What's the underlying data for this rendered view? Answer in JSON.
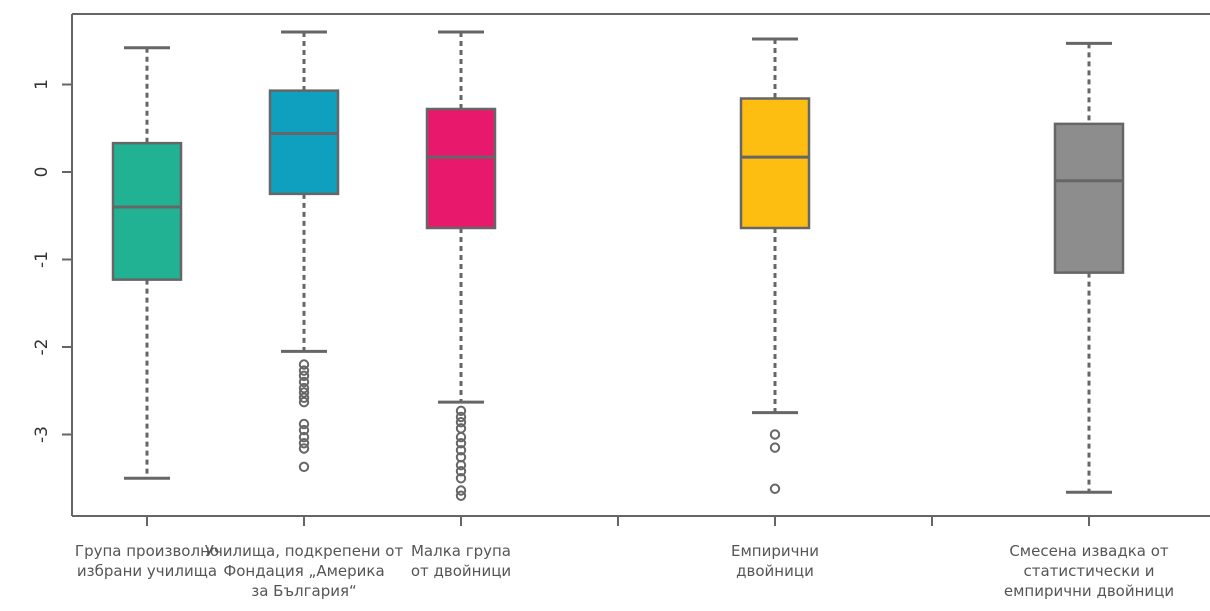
{
  "chart_data": {
    "type": "boxplot",
    "title": "",
    "xlabel": "",
    "ylabel": "",
    "ylim": [
      -3.9,
      1.8
    ],
    "yticks": [
      1,
      0,
      -1,
      -2,
      -3
    ],
    "ytick_labels": [
      "1",
      "0",
      "-1",
      "-2",
      "-3"
    ],
    "grid": false,
    "legend": "none",
    "categories": [
      "Група произволно\nизбрани училища",
      "Училища, подкрепени от\nФондация „Америка\nза България“",
      "Малка група\nот двойници",
      "",
      "Емпирични\nдвойници",
      "",
      "Смесена извадка от\nстатистически и\nемпирични двойници"
    ],
    "boxes": [
      {
        "category_index": 0,
        "whisker_low": -3.5,
        "q1": -1.23,
        "median": -0.4,
        "q3": 0.33,
        "whisker_high": 1.42,
        "outliers": [],
        "color": "#21B293"
      },
      {
        "category_index": 1,
        "whisker_low": -2.05,
        "q1": -0.25,
        "median": 0.44,
        "q3": 0.93,
        "whisker_high": 1.6,
        "outliers": [
          -2.2,
          -2.27,
          -2.33,
          -2.4,
          -2.47,
          -2.52,
          -2.58,
          -2.63,
          -2.88,
          -2.95,
          -3.03,
          -3.1,
          -3.16,
          -3.37
        ],
        "color": "#0EA0BE"
      },
      {
        "category_index": 2,
        "whisker_low": -2.63,
        "q1": -0.64,
        "median": 0.17,
        "q3": 0.72,
        "whisker_high": 1.6,
        "outliers": [
          -2.73,
          -2.8,
          -2.86,
          -2.93,
          -3.03,
          -3.1,
          -3.18,
          -3.26,
          -3.35,
          -3.42,
          -3.5,
          -3.64,
          -3.7
        ],
        "color": "#E8186C"
      },
      {
        "category_index": 4,
        "whisker_low": -2.75,
        "q1": -0.64,
        "median": 0.17,
        "q3": 0.84,
        "whisker_high": 1.52,
        "outliers": [
          -3.0,
          -3.15,
          -3.62
        ],
        "color": "#FEBD11"
      },
      {
        "category_index": 6,
        "whisker_low": -3.66,
        "q1": -1.15,
        "median": -0.1,
        "q3": 0.55,
        "whisker_high": 1.47,
        "outliers": [],
        "color": "#8D8D8D"
      }
    ],
    "line_color": "#666666"
  }
}
